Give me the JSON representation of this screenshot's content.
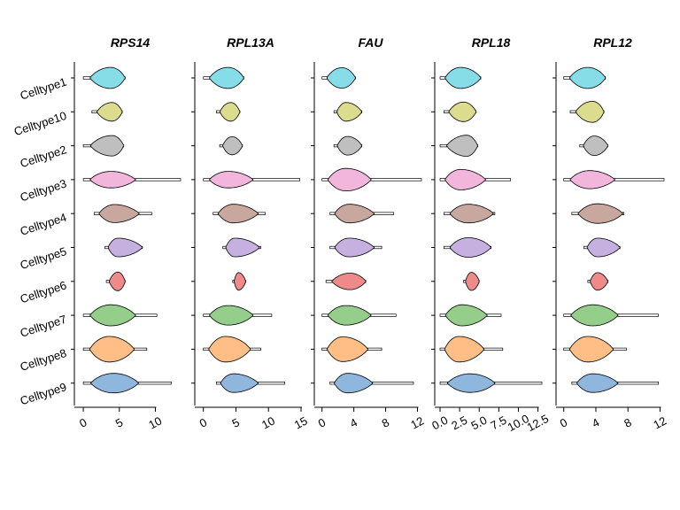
{
  "chart_data": {
    "type": "violin",
    "categories": [
      "Celltype1",
      "Celltype10",
      "Celltype2",
      "Celltype3",
      "Celltype4",
      "Celltype5",
      "Celltype6",
      "Celltype7",
      "Celltype8",
      "Celltype9"
    ],
    "category_colors": [
      "#86DDE8",
      "#DCDC8E",
      "#BFBFBF",
      "#F2B6DC",
      "#C8A89E",
      "#C5B0DF",
      "#EE8A8A",
      "#95CD8B",
      "#FFBE86",
      "#8FB6DC"
    ],
    "panels": [
      {
        "title": "RPS14",
        "xlim": [
          -0.5,
          13.5
        ],
        "ticks": [
          0,
          5,
          10
        ],
        "tick_labels": [
          "0",
          "5",
          "10"
        ],
        "violins": [
          {
            "min": 0,
            "max": 5.8,
            "center": 3.8,
            "width": 0.7
          },
          {
            "min": 1.2,
            "max": 5.4,
            "center": 4.0,
            "width": 0.62
          },
          {
            "min": 0,
            "max": 5.6,
            "center": 4.0,
            "width": 0.68
          },
          {
            "min": 0,
            "max": 13.5,
            "center": 3.8,
            "width": 0.55
          },
          {
            "min": 1.5,
            "max": 9.5,
            "center": 4.3,
            "width": 0.6
          },
          {
            "min": 3.0,
            "max": 8.2,
            "center": 4.8,
            "width": 0.62
          },
          {
            "min": 3.2,
            "max": 5.8,
            "center": 4.8,
            "width": 0.62
          },
          {
            "min": 0,
            "max": 10.2,
            "center": 3.8,
            "width": 0.7
          },
          {
            "min": 0,
            "max": 8.8,
            "center": 3.6,
            "width": 0.85
          },
          {
            "min": 0,
            "max": 12.2,
            "center": 4.2,
            "width": 0.65
          }
        ]
      },
      {
        "title": "RPL13A",
        "xlim": [
          -0.5,
          15.0
        ],
        "ticks": [
          0,
          5,
          10,
          15
        ],
        "tick_labels": [
          "0",
          "5",
          "10",
          "15"
        ],
        "violins": [
          {
            "min": 0,
            "max": 6.2,
            "center": 3.8,
            "width": 0.7
          },
          {
            "min": 2.0,
            "max": 5.6,
            "center": 4.2,
            "width": 0.62
          },
          {
            "min": 2.5,
            "max": 6.0,
            "center": 4.4,
            "width": 0.6
          },
          {
            "min": 0,
            "max": 14.8,
            "center": 3.8,
            "width": 0.55
          },
          {
            "min": 1.5,
            "max": 9.5,
            "center": 4.6,
            "width": 0.62
          },
          {
            "min": 3.0,
            "max": 8.8,
            "center": 4.8,
            "width": 0.62
          },
          {
            "min": 4.5,
            "max": 6.5,
            "center": 5.4,
            "width": 0.58
          },
          {
            "min": 0,
            "max": 10.5,
            "center": 3.8,
            "width": 0.65
          },
          {
            "min": 0,
            "max": 8.8,
            "center": 3.4,
            "width": 0.85
          },
          {
            "min": 2.0,
            "max": 12.5,
            "center": 4.6,
            "width": 0.62
          }
        ]
      },
      {
        "title": "FAU",
        "xlim": [
          -0.3,
          12.5
        ],
        "ticks": [
          0,
          4,
          8,
          12
        ],
        "tick_labels": [
          "0",
          "4",
          "8",
          "12"
        ],
        "violins": [
          {
            "min": 0,
            "max": 4.2,
            "center": 2.5,
            "width": 0.68
          },
          {
            "min": 1.5,
            "max": 5.0,
            "center": 3.0,
            "width": 0.62
          },
          {
            "min": 1.5,
            "max": 5.0,
            "center": 3.2,
            "width": 0.62
          },
          {
            "min": 0,
            "max": 12.5,
            "center": 3.0,
            "width": 0.75
          },
          {
            "min": 1.0,
            "max": 9.0,
            "center": 3.4,
            "width": 0.62
          },
          {
            "min": 1.0,
            "max": 7.5,
            "center": 3.4,
            "width": 0.62
          },
          {
            "min": 0.5,
            "max": 5.5,
            "center": 3.5,
            "width": 0.55
          },
          {
            "min": 0,
            "max": 9.3,
            "center": 3.0,
            "width": 0.65
          },
          {
            "min": 0,
            "max": 7.5,
            "center": 2.6,
            "width": 0.82
          },
          {
            "min": 1.0,
            "max": 11.5,
            "center": 3.2,
            "width": 0.65
          }
        ]
      },
      {
        "title": "RPL18",
        "xlim": [
          0,
          13.0
        ],
        "ticks": [
          0,
          2.5,
          5.0,
          7.5,
          10.0,
          12.5
        ],
        "tick_labels": [
          "0.0",
          "2.5",
          "5.0",
          "7.5",
          "10.0",
          "12.5"
        ],
        "violins": [
          {
            "min": 0,
            "max": 5.2,
            "center": 2.6,
            "width": 0.7
          },
          {
            "min": 0.5,
            "max": 4.6,
            "center": 3.0,
            "width": 0.65
          },
          {
            "min": 0,
            "max": 4.8,
            "center": 3.4,
            "width": 0.7
          },
          {
            "min": 0,
            "max": 9.0,
            "center": 2.6,
            "width": 0.68
          },
          {
            "min": 0.5,
            "max": 7.0,
            "center": 3.6,
            "width": 0.62
          },
          {
            "min": 0.5,
            "max": 6.5,
            "center": 3.6,
            "width": 0.65
          },
          {
            "min": 3.0,
            "max": 5.0,
            "center": 4.0,
            "width": 0.6
          },
          {
            "min": 0,
            "max": 7.8,
            "center": 2.8,
            "width": 0.7
          },
          {
            "min": 0,
            "max": 8.0,
            "center": 2.4,
            "width": 0.85
          },
          {
            "min": 0,
            "max": 13.0,
            "center": 3.8,
            "width": 0.62
          }
        ]
      },
      {
        "title": "RPL12",
        "xlim": [
          -0.3,
          12.5
        ],
        "ticks": [
          0,
          4,
          8,
          12
        ],
        "tick_labels": [
          "0",
          "4",
          "8",
          "12"
        ],
        "violins": [
          {
            "min": 0,
            "max": 5.2,
            "center": 3.0,
            "width": 0.7
          },
          {
            "min": 0.8,
            "max": 5.0,
            "center": 3.6,
            "width": 0.7
          },
          {
            "min": 2.0,
            "max": 5.5,
            "center": 3.8,
            "width": 0.65
          },
          {
            "min": 0,
            "max": 12.5,
            "center": 3.2,
            "width": 0.6
          },
          {
            "min": 1.0,
            "max": 7.5,
            "center": 4.2,
            "width": 0.65
          },
          {
            "min": 2.5,
            "max": 7.0,
            "center": 4.2,
            "width": 0.62
          },
          {
            "min": 3.0,
            "max": 5.5,
            "center": 4.2,
            "width": 0.58
          },
          {
            "min": 0,
            "max": 11.8,
            "center": 3.6,
            "width": 0.7
          },
          {
            "min": 0,
            "max": 7.8,
            "center": 3.0,
            "width": 0.85
          },
          {
            "min": 1.0,
            "max": 11.8,
            "center": 3.6,
            "width": 0.62
          }
        ]
      }
    ]
  }
}
